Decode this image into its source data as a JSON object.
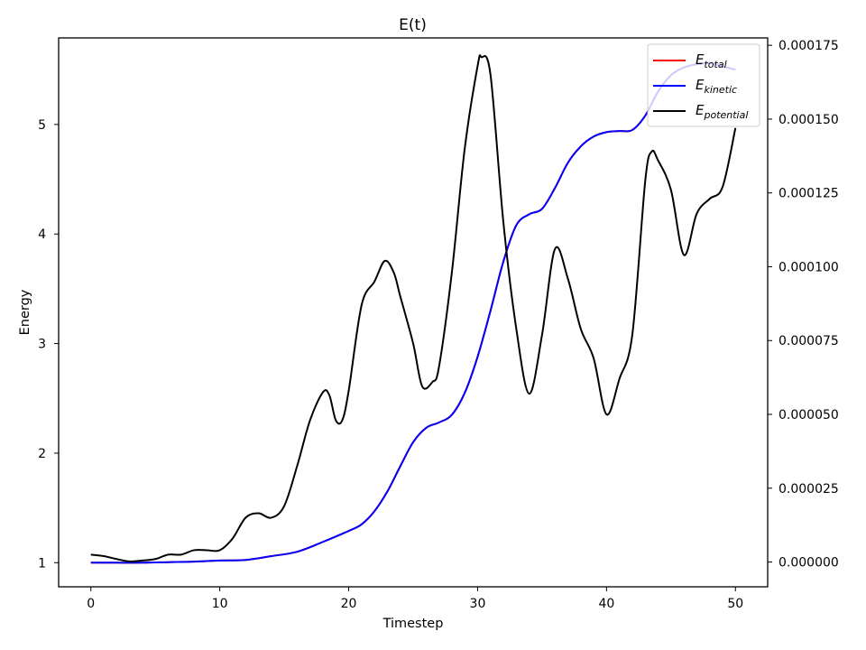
{
  "chart_data": {
    "type": "line",
    "title": "E(t)",
    "xlabel": "Timestep",
    "ylabel": "Energy",
    "y2label": "",
    "xlim": [
      -2.5,
      52.5
    ],
    "ylim": [
      0.78,
      5.79
    ],
    "y2lim": [
      -8.4e-06,
      0.0001775
    ],
    "xticks": [
      0,
      10,
      20,
      30,
      40,
      50
    ],
    "xtick_labels": [
      "0",
      "10",
      "20",
      "30",
      "40",
      "50"
    ],
    "yticks": [
      1,
      2,
      3,
      4,
      5
    ],
    "ytick_labels": [
      "1",
      "2",
      "3",
      "4",
      "5"
    ],
    "y2ticks": [
      0,
      2.5e-05,
      5e-05,
      7.5e-05,
      0.0001,
      0.000125,
      0.00015,
      0.000175
    ],
    "y2tick_labels": [
      "0.000000",
      "0.000025",
      "0.000050",
      "0.000075",
      "0.000100",
      "0.000125",
      "0.000150",
      "0.000175"
    ],
    "grid": false,
    "legend_position": "top-right",
    "series": [
      {
        "name": "E_total",
        "legend_main": "E",
        "legend_sub": "total",
        "color": "#ff0000",
        "axis": "left",
        "x": [
          0,
          2,
          4,
          6,
          8,
          10,
          12,
          14,
          16,
          18,
          20,
          21,
          22,
          23,
          24,
          25,
          26,
          27,
          28,
          29,
          30,
          31,
          32,
          33,
          34,
          35,
          36,
          37,
          38,
          39,
          40,
          41,
          42,
          43,
          44,
          45,
          46,
          47,
          48,
          49,
          50
        ],
        "y": [
          1.0,
          1.0,
          1.0,
          1.005,
          1.01,
          1.02,
          1.025,
          1.06,
          1.1,
          1.19,
          1.29,
          1.35,
          1.47,
          1.65,
          1.88,
          2.1,
          2.23,
          2.28,
          2.35,
          2.55,
          2.88,
          3.3,
          3.75,
          4.08,
          4.18,
          4.23,
          4.42,
          4.65,
          4.8,
          4.89,
          4.93,
          4.94,
          4.95,
          5.08,
          5.3,
          5.45,
          5.52,
          5.55,
          5.56,
          5.53,
          5.5
        ]
      },
      {
        "name": "E_kinetic",
        "legend_main": "E",
        "legend_sub": "kinetic",
        "color": "#0000ff",
        "axis": "left",
        "x": [
          0,
          2,
          4,
          6,
          8,
          10,
          12,
          14,
          16,
          18,
          20,
          21,
          22,
          23,
          24,
          25,
          26,
          27,
          28,
          29,
          30,
          31,
          32,
          33,
          34,
          35,
          36,
          37,
          38,
          39,
          40,
          41,
          42,
          43,
          44,
          45,
          46,
          47,
          48,
          49,
          50
        ],
        "y": [
          1.0,
          1.0,
          1.0,
          1.005,
          1.01,
          1.02,
          1.025,
          1.06,
          1.1,
          1.19,
          1.29,
          1.35,
          1.47,
          1.65,
          1.88,
          2.1,
          2.23,
          2.28,
          2.35,
          2.55,
          2.88,
          3.3,
          3.75,
          4.08,
          4.18,
          4.23,
          4.42,
          4.65,
          4.8,
          4.89,
          4.93,
          4.94,
          4.95,
          5.08,
          5.3,
          5.45,
          5.52,
          5.55,
          5.56,
          5.53,
          5.5
        ]
      },
      {
        "name": "E_potential",
        "legend_main": "E",
        "legend_sub": "potential",
        "color": "#000000",
        "axis": "right",
        "x": [
          0,
          1,
          2,
          3,
          4,
          5,
          6,
          7,
          8,
          9,
          10,
          11,
          12,
          13,
          14,
          15,
          16,
          17,
          18,
          18.5,
          19,
          19.5,
          20,
          21,
          22,
          22.8,
          23.5,
          24,
          25,
          25.7,
          26.5,
          27,
          28,
          29,
          30,
          30.3,
          31,
          32,
          33,
          34,
          35,
          36,
          37,
          38,
          39,
          40,
          41,
          42,
          43,
          43.5,
          44,
          45,
          46,
          47,
          48,
          49,
          50
        ],
        "y": [
          2.5e-06,
          2e-06,
          1e-06,
          2e-07,
          5e-07,
          1e-06,
          2.5e-06,
          2.5e-06,
          4e-06,
          4e-06,
          4e-06,
          8e-06,
          1.5e-05,
          1.65e-05,
          1.5e-05,
          1.9e-05,
          3.25e-05,
          4.8e-05,
          5.75e-05,
          5.65e-05,
          4.8e-05,
          4.8e-05,
          5.8e-05,
          8.7e-05,
          9.5e-05,
          0.000102,
          9.8e-05,
          9e-05,
          7.4e-05,
          5.95e-05,
          6.1e-05,
          6.6e-05,
          9.8e-05,
          0.00014,
          0.000168,
          0.000171,
          0.000165,
          0.000115,
          7.9e-05,
          5.7e-05,
          7.7e-05,
          0.000106,
          9.6e-05,
          7.9e-05,
          6.9e-05,
          5e-05,
          6.2e-05,
          7.7e-05,
          0.000129,
          0.000139,
          0.000136,
          0.000126,
          0.000104,
          0.000118,
          0.000123,
          0.000127,
          0.000147
        ]
      }
    ]
  }
}
